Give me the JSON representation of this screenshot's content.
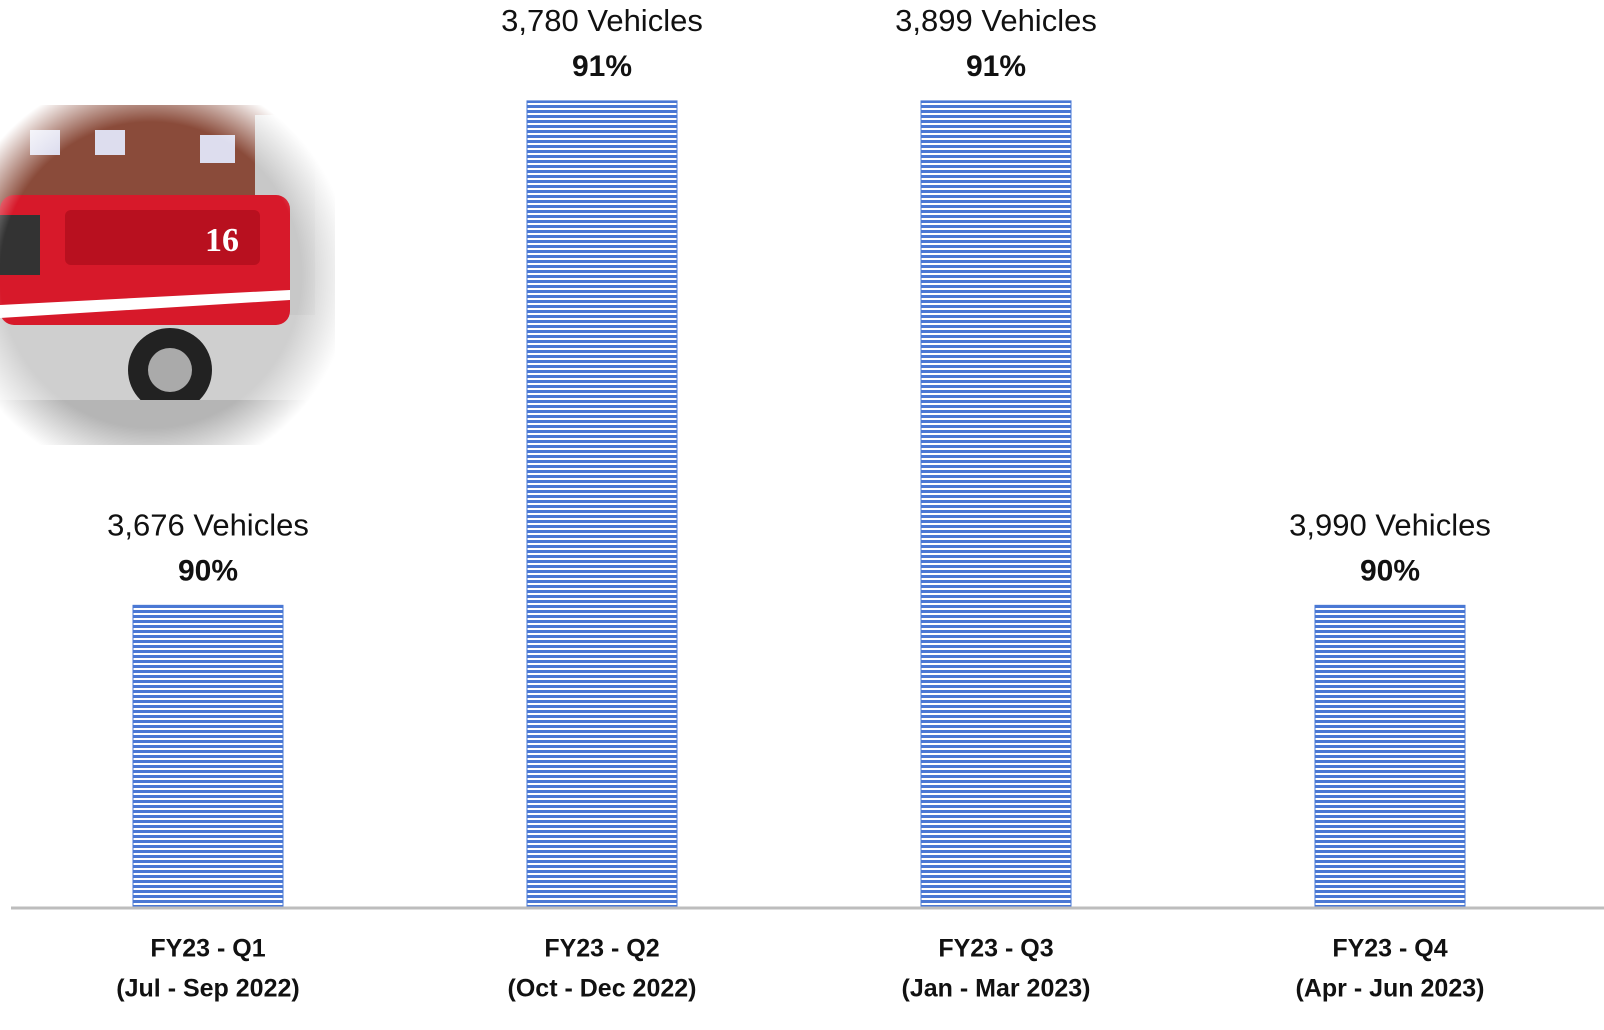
{
  "chart_data": {
    "type": "bar",
    "categories": [
      [
        "FY23 - Q1",
        "(Jul - Sep 2022)"
      ],
      [
        "FY23 - Q2",
        "(Oct - Dec 2022)"
      ],
      [
        "FY23 - Q3",
        "(Jan - Mar 2023)"
      ],
      [
        "FY23 - Q4",
        "(Apr - Jun 2023)"
      ]
    ],
    "values": [
      90,
      91,
      91,
      90
    ],
    "value_labels": [
      "90%",
      "91%",
      "91%",
      "90%"
    ],
    "annotations": [
      "3,676 Vehicles",
      "3,780 Vehicles",
      "3,899 Vehicles",
      "3,990 Vehicles"
    ],
    "color": "#4a78d4",
    "ylim": [
      89.4,
      91.2
    ]
  }
}
